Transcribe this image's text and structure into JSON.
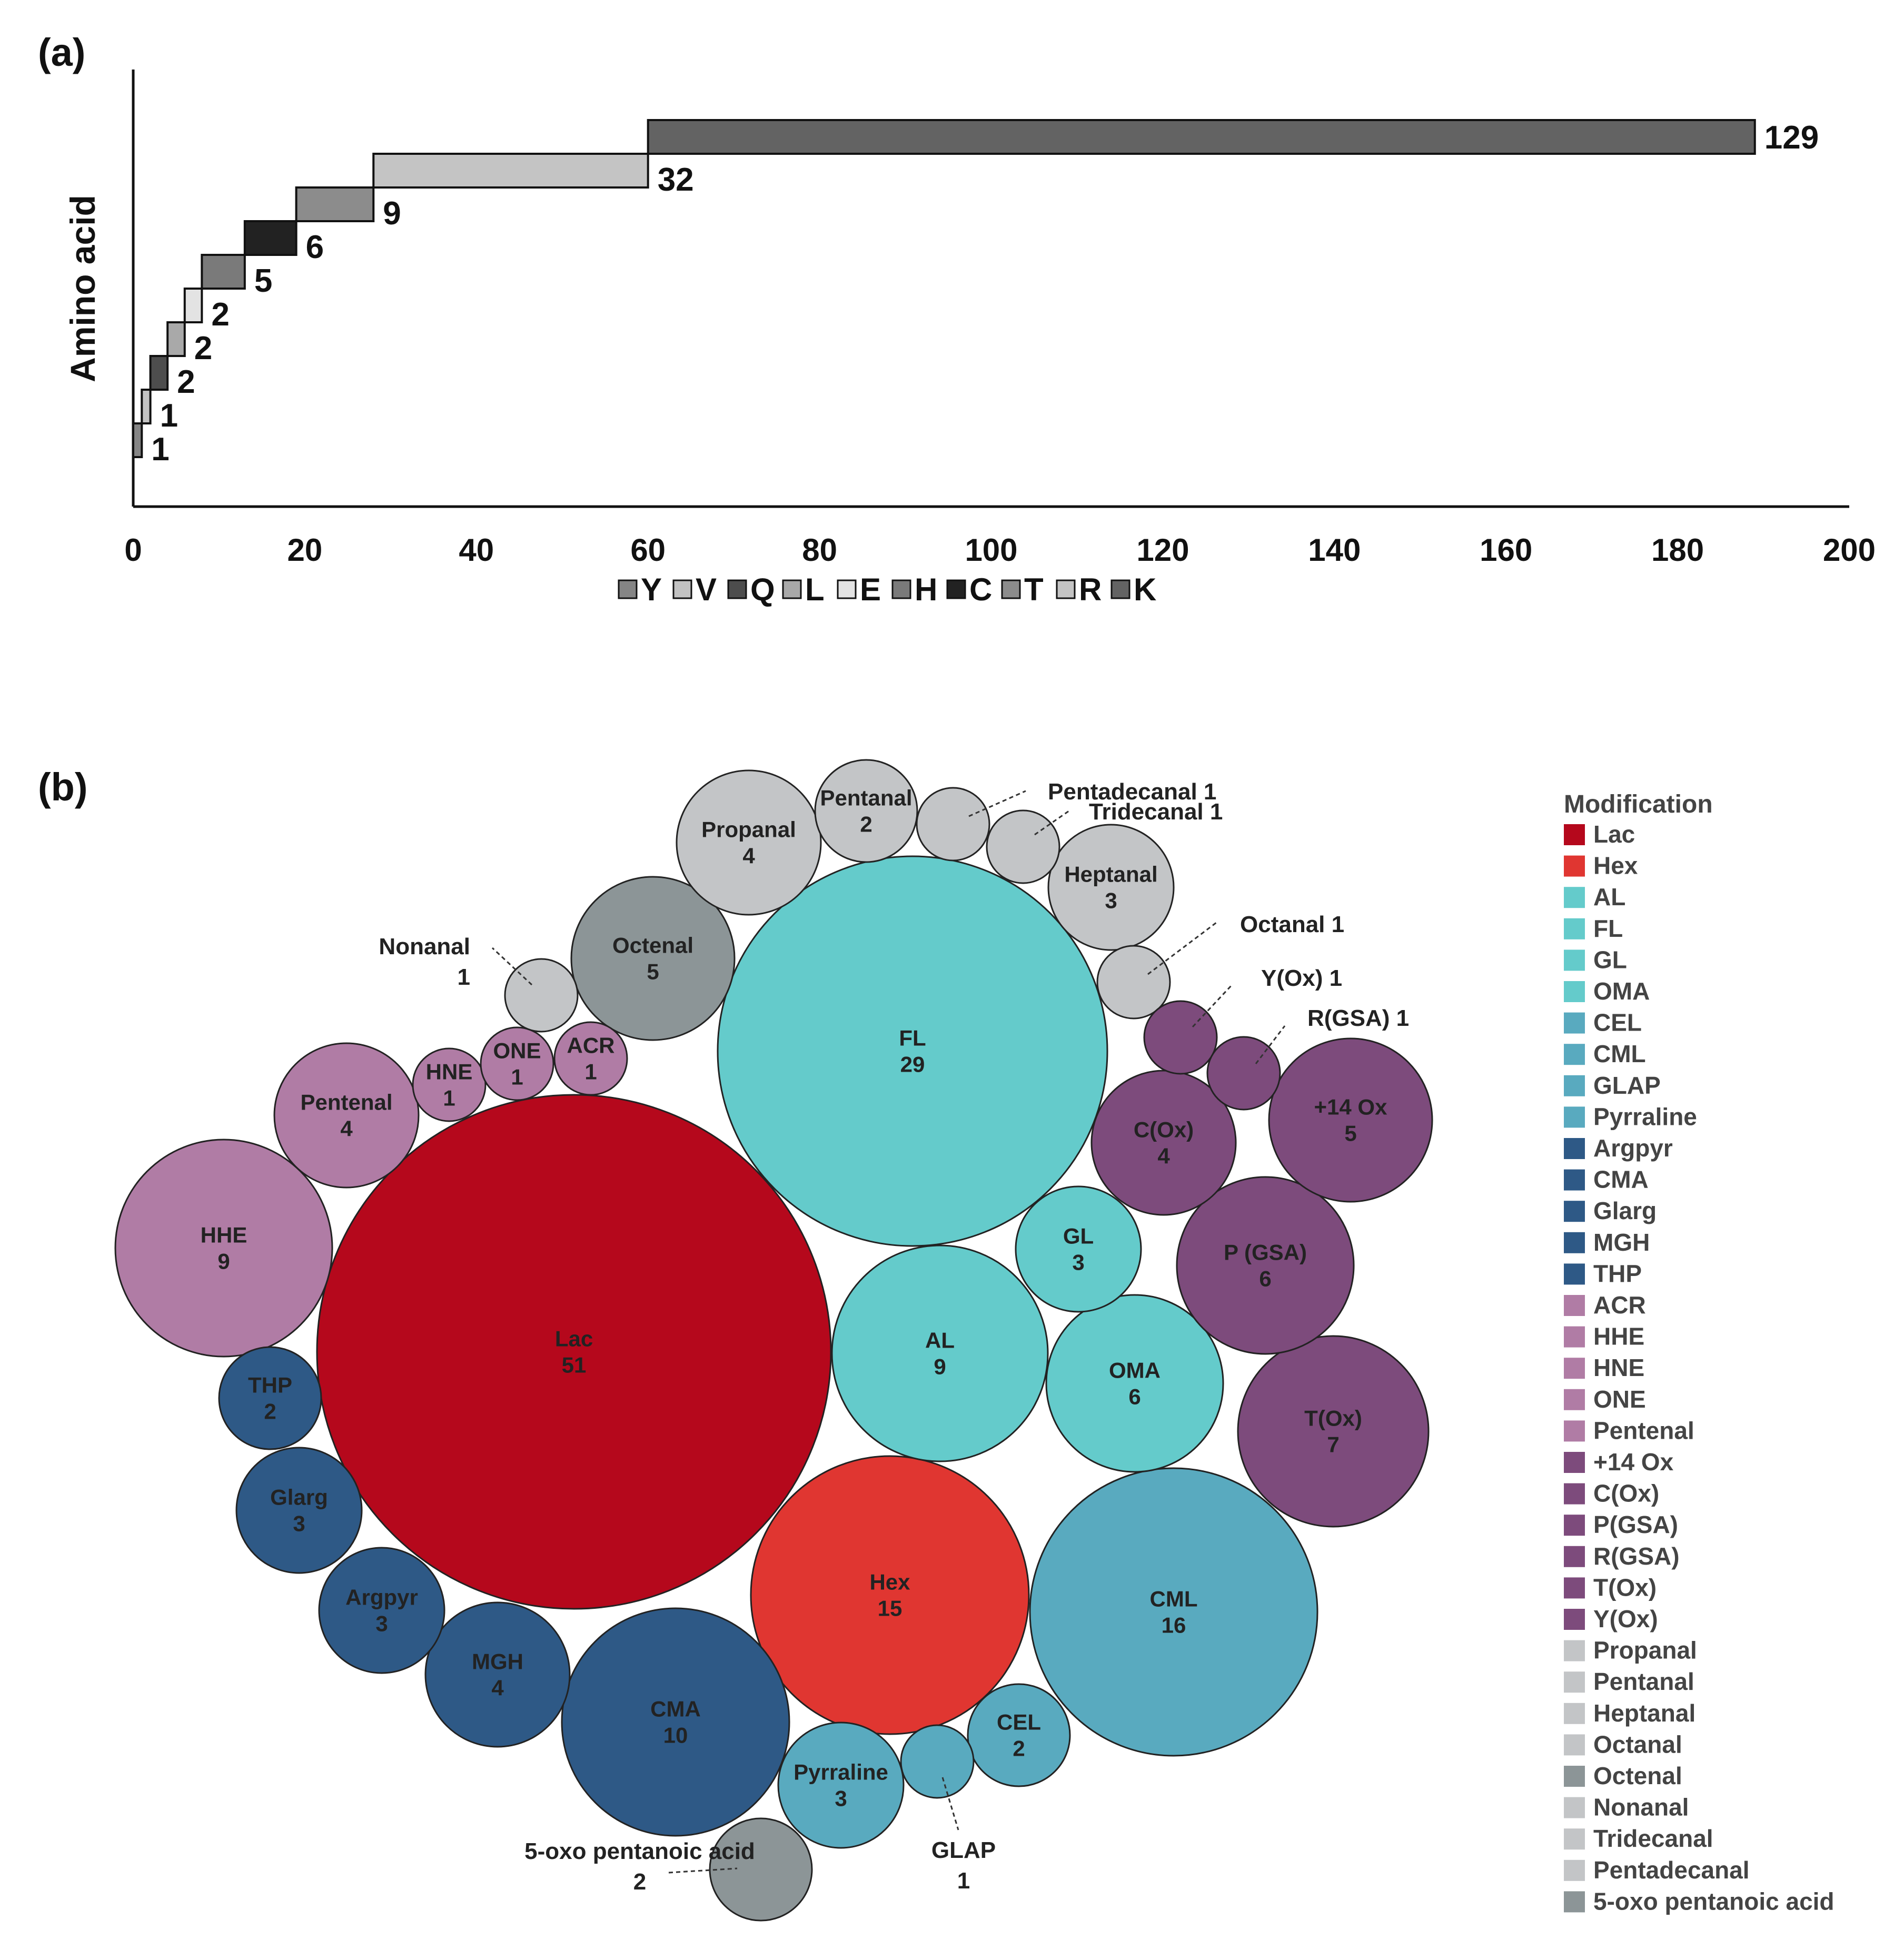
{
  "chart_data": [
    {
      "panel": "(a)",
      "type": "bar",
      "orientation": "horizontal-stacked-cumulative",
      "xlabel": "",
      "ylabel": "Amino acid",
      "xlim": [
        0,
        200
      ],
      "x_ticks": [
        "0",
        "20",
        "40",
        "60",
        "80",
        "100",
        "120",
        "140",
        "160",
        "180",
        "200"
      ],
      "series": [
        {
          "name": "Y",
          "value": 1,
          "label": "1",
          "color": "#858585"
        },
        {
          "name": "V",
          "value": 1,
          "label": "1",
          "color": "#c2c2c2"
        },
        {
          "name": "Q",
          "value": 2,
          "label": "2",
          "color": "#4d4d4d"
        },
        {
          "name": "L",
          "value": 2,
          "label": "2",
          "color": "#a9a9a9"
        },
        {
          "name": "E",
          "value": 2,
          "label": "2",
          "color": "#e3e3e3"
        },
        {
          "name": "H",
          "value": 5,
          "label": "5",
          "color": "#7a7a7a"
        },
        {
          "name": "C",
          "value": 6,
          "label": "6",
          "color": "#222222"
        },
        {
          "name": "T",
          "value": 9,
          "label": "9",
          "color": "#8c8c8c"
        },
        {
          "name": "R",
          "value": 32,
          "label": "32",
          "color": "#c4c4c4"
        },
        {
          "name": "K",
          "value": 129,
          "label": "129",
          "color": "#636363"
        }
      ],
      "legend": [
        "Y",
        "V",
        "Q",
        "L",
        "E",
        "H",
        "C",
        "T",
        "R",
        "K"
      ]
    },
    {
      "panel": "(b)",
      "type": "bubble",
      "legend_title": "Modification",
      "bubbles": [
        {
          "name": "Lac",
          "value": 51,
          "label_lines": [
            "Lac",
            "51"
          ],
          "color": "#b5081c"
        },
        {
          "name": "FL",
          "value": 29,
          "label_lines": [
            "FL",
            "29"
          ],
          "color": "#64cbcb"
        },
        {
          "name": "CML",
          "value": 16,
          "label_lines": [
            "CML",
            "16"
          ],
          "color": "#59aabf"
        },
        {
          "name": "Hex",
          "value": 15,
          "label_lines": [
            "Hex",
            "15"
          ],
          "color": "#e03631"
        },
        {
          "name": "CMA",
          "value": 10,
          "label_lines": [
            "CMA",
            "10"
          ],
          "color": "#2e5986"
        },
        {
          "name": "HHE",
          "value": 9,
          "label_lines": [
            "HHE",
            "9"
          ],
          "color": "#b07ca5"
        },
        {
          "name": "AL",
          "value": 9,
          "label_lines": [
            "AL",
            "9"
          ],
          "color": "#64cbcb"
        },
        {
          "name": "T(Ox)",
          "value": 7,
          "label_lines": [
            "T(Ox)",
            "7"
          ],
          "color": "#7d4b7c"
        },
        {
          "name": "OMA",
          "value": 6,
          "label_lines": [
            "OMA",
            "6"
          ],
          "color": "#64cbcb"
        },
        {
          "name": "P (GSA)",
          "value": 6,
          "label_lines": [
            "P (GSA)",
            "6"
          ],
          "color": "#7d4b7c"
        },
        {
          "name": "+14 Ox",
          "value": 5,
          "label_lines": [
            "+14 Ox",
            "5"
          ],
          "color": "#7d4b7c"
        },
        {
          "name": "Octenal",
          "value": 5,
          "label_lines": [
            "Octenal",
            "5"
          ],
          "color": "#8c9597"
        },
        {
          "name": "Propanal",
          "value": 4,
          "label_lines": [
            "Propanal",
            "4"
          ],
          "color": "#c3c5c7"
        },
        {
          "name": "C(Ox)",
          "value": 4,
          "label_lines": [
            "C(Ox)",
            "4"
          ],
          "color": "#7d4b7c"
        },
        {
          "name": "Pentenal",
          "value": 4,
          "label_lines": [
            "Pentenal",
            "4"
          ],
          "color": "#b07ca5"
        },
        {
          "name": "MGH",
          "value": 4,
          "label_lines": [
            "MGH",
            "4"
          ],
          "color": "#2e5986"
        },
        {
          "name": "Heptanal",
          "value": 3,
          "label_lines": [
            "Heptanal",
            "3"
          ],
          "color": "#c3c5c7"
        },
        {
          "name": "GL",
          "value": 3,
          "label_lines": [
            "GL",
            "3"
          ],
          "color": "#64cbcb"
        },
        {
          "name": "Glarg",
          "value": 3,
          "label_lines": [
            "Glarg",
            "3"
          ],
          "color": "#2e5986"
        },
        {
          "name": "Argpyr",
          "value": 3,
          "label_lines": [
            "Argpyr",
            "3"
          ],
          "color": "#2e5986"
        },
        {
          "name": "Pyrraline",
          "value": 3,
          "label_lines": [
            "Pyrraline",
            "3"
          ],
          "color": "#59aabf"
        },
        {
          "name": "Pentanal",
          "value": 2,
          "label_lines": [
            "Pentanal",
            "2"
          ],
          "color": "#c3c5c7"
        },
        {
          "name": "THP",
          "value": 2,
          "label_lines": [
            "THP",
            "2"
          ],
          "color": "#2e5986"
        },
        {
          "name": "CEL",
          "value": 2,
          "label_lines": [
            "CEL",
            "2"
          ],
          "color": "#59aabf"
        },
        {
          "name": "5-oxo pentanoic acid",
          "value": 2,
          "label_lines": [],
          "color": "#8c9597"
        },
        {
          "name": "HNE",
          "value": 1,
          "label_lines": [
            "HNE",
            "1"
          ],
          "color": "#b07ca5"
        },
        {
          "name": "ONE",
          "value": 1,
          "label_lines": [
            "ONE",
            "1"
          ],
          "color": "#b07ca5"
        },
        {
          "name": "ACR",
          "value": 1,
          "label_lines": [
            "ACR",
            "1"
          ],
          "color": "#b07ca5"
        },
        {
          "name": "Nonanal",
          "value": 1,
          "label_lines": [],
          "color": "#c3c5c7"
        },
        {
          "name": "Pentadecanal",
          "value": 1,
          "label_lines": [],
          "color": "#c3c5c7"
        },
        {
          "name": "Tridecanal",
          "value": 1,
          "label_lines": [],
          "color": "#c3c5c7"
        },
        {
          "name": "Octanal",
          "value": 1,
          "label_lines": [],
          "color": "#c3c5c7"
        },
        {
          "name": "Y(Ox)",
          "value": 1,
          "label_lines": [],
          "color": "#7d4b7c"
        },
        {
          "name": "R(GSA)",
          "value": 1,
          "label_lines": [],
          "color": "#7d4b7c"
        },
        {
          "name": "GLAP",
          "value": 1,
          "label_lines": [],
          "color": "#59aabf"
        }
      ],
      "callouts": [
        {
          "target": "Pentadecanal",
          "lines": [
            "Pentadecanal 1"
          ]
        },
        {
          "target": "Tridecanal",
          "lines": [
            "Tridecanal 1"
          ]
        },
        {
          "target": "Octanal",
          "lines": [
            "Octanal 1"
          ]
        },
        {
          "target": "Y(Ox)",
          "lines": [
            "Y(Ox) 1"
          ]
        },
        {
          "target": "R(GSA)",
          "lines": [
            "R(GSA) 1"
          ]
        },
        {
          "target": "Nonanal",
          "lines": [
            "Nonanal",
            "1"
          ]
        },
        {
          "target": "GLAP",
          "lines": [
            "GLAP",
            "1"
          ]
        },
        {
          "target": "5-oxo pentanoic acid",
          "lines": [
            "5-oxo pentanoic acid",
            "2"
          ]
        }
      ],
      "legend": [
        {
          "label": "Lac",
          "color": "#b5081c"
        },
        {
          "label": "Hex",
          "color": "#e03631"
        },
        {
          "label": "AL",
          "color": "#64cbcb"
        },
        {
          "label": "FL",
          "color": "#64cbcb"
        },
        {
          "label": "GL",
          "color": "#64cbcb"
        },
        {
          "label": "OMA",
          "color": "#64cbcb"
        },
        {
          "label": "CEL",
          "color": "#59aabf"
        },
        {
          "label": "CML",
          "color": "#59aabf"
        },
        {
          "label": "GLAP",
          "color": "#59aabf"
        },
        {
          "label": "Pyrraline",
          "color": "#59aabf"
        },
        {
          "label": "Argpyr",
          "color": "#2e5986"
        },
        {
          "label": "CMA",
          "color": "#2e5986"
        },
        {
          "label": "Glarg",
          "color": "#2e5986"
        },
        {
          "label": "MGH",
          "color": "#2e5986"
        },
        {
          "label": "THP",
          "color": "#2e5986"
        },
        {
          "label": "ACR",
          "color": "#b07ca5"
        },
        {
          "label": "HHE",
          "color": "#b07ca5"
        },
        {
          "label": "HNE",
          "color": "#b07ca5"
        },
        {
          "label": "ONE",
          "color": "#b07ca5"
        },
        {
          "label": "Pentenal",
          "color": "#b07ca5"
        },
        {
          "label": "+14 Ox",
          "color": "#7d4b7c"
        },
        {
          "label": "C(Ox)",
          "color": "#7d4b7c"
        },
        {
          "label": "P(GSA)",
          "color": "#7d4b7c"
        },
        {
          "label": "R(GSA)",
          "color": "#7d4b7c"
        },
        {
          "label": "T(Ox)",
          "color": "#7d4b7c"
        },
        {
          "label": "Y(Ox)",
          "color": "#7d4b7c"
        },
        {
          "label": "Propanal",
          "color": "#c3c5c7"
        },
        {
          "label": "Pentanal",
          "color": "#c3c5c7"
        },
        {
          "label": "Heptanal",
          "color": "#c3c5c7"
        },
        {
          "label": "Octanal",
          "color": "#c3c5c7"
        },
        {
          "label": "Octenal",
          "color": "#8c9597"
        },
        {
          "label": "Nonanal",
          "color": "#c3c5c7"
        },
        {
          "label": "Tridecanal",
          "color": "#c3c5c7"
        },
        {
          "label": "Pentadecanal",
          "color": "#c3c5c7"
        },
        {
          "label": "5-oxo pentanoic acid",
          "color": "#8c9597"
        }
      ]
    }
  ]
}
